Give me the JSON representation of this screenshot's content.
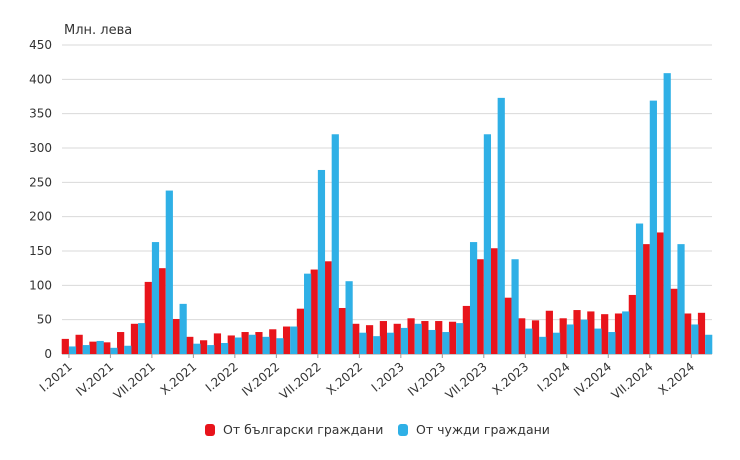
{
  "colors": {
    "series1": "#e8141b",
    "series2": "#2fb0e6",
    "grid": "#d9d9d9",
    "axis": "#9a9a9a",
    "text": "#333333"
  },
  "chart_data": {
    "type": "bar",
    "title": "",
    "ylabel": "Млн. лева",
    "xlabel": "",
    "ylim": [
      0,
      450
    ],
    "yticks": [
      0,
      50,
      100,
      150,
      200,
      250,
      300,
      350,
      400,
      450
    ],
    "grid": true,
    "legend_position": "bottom-center",
    "categories": [
      "I.2021",
      "II.2021",
      "III.2021",
      "IV.2021",
      "V.2021",
      "VI.2021",
      "VII.2021",
      "VIII.2021",
      "IX.2021",
      "X.2021",
      "XI.2021",
      "XII.2021",
      "I.2022",
      "II.2022",
      "III.2022",
      "IV.2022",
      "V.2022",
      "VI.2022",
      "VII.2022",
      "VIII.2022",
      "IX.2022",
      "X.2022",
      "XI.2022",
      "XII.2022",
      "I.2023",
      "II.2023",
      "III.2023",
      "IV.2023",
      "V.2023",
      "VI.2023",
      "VII.2023",
      "VIII.2023",
      "IX.2023",
      "X.2023",
      "XI.2023",
      "XII.2023",
      "I.2024",
      "II.2024",
      "III.2024",
      "IV.2024",
      "V.2024",
      "VI.2024",
      "VII.2024",
      "VIII.2024",
      "IX.2024",
      "X.2024",
      "XI.2024"
    ],
    "shown_tick_labels": [
      "I.2021",
      "IV.2021",
      "VII.2021",
      "X.2021",
      "I.2022",
      "IV.2022",
      "VII.2022",
      "X.2022",
      "I.2023",
      "IV.2023",
      "VII.2023",
      "X.2023",
      "I.2024",
      "IV.2024",
      "VII.2024",
      "X.2024"
    ],
    "series": [
      {
        "name": "От български граждани",
        "values": [
          22,
          28,
          18,
          17,
          32,
          44,
          105,
          125,
          51,
          25,
          20,
          30,
          27,
          32,
          32,
          36,
          40,
          66,
          123,
          135,
          67,
          44,
          42,
          48,
          44,
          52,
          48,
          48,
          47,
          70,
          138,
          154,
          82,
          52,
          49,
          63,
          52,
          64,
          62,
          58,
          59,
          86,
          160,
          177,
          95,
          59,
          60
        ]
      },
      {
        "name": "От чужди граждани",
        "values": [
          11,
          13,
          19,
          9,
          12,
          45,
          163,
          238,
          73,
          15,
          13,
          16,
          24,
          28,
          25,
          23,
          40,
          117,
          268,
          320,
          106,
          31,
          26,
          31,
          38,
          44,
          35,
          32,
          45,
          163,
          320,
          373,
          138,
          37,
          25,
          31,
          43,
          50,
          37,
          32,
          62,
          190,
          369,
          409,
          160,
          43,
          28
        ]
      }
    ]
  }
}
